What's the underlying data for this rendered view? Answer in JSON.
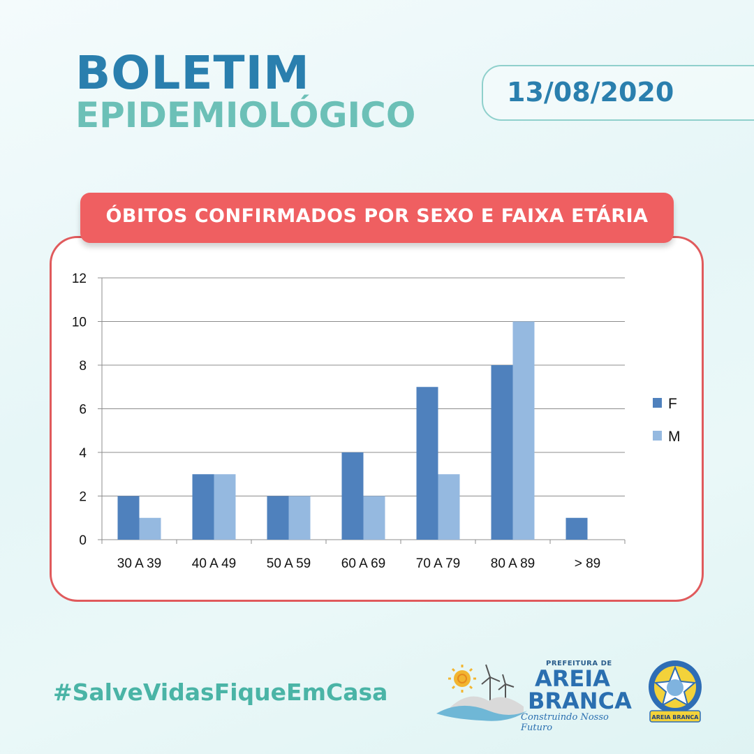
{
  "header": {
    "title_line1": "BOLETIM",
    "title_line2": "EPIDEMIOLÓGICO",
    "date": "13/08/2020"
  },
  "banner": {
    "text": "ÓBITOS CONFIRMADOS POR SEXO E FAIXA ETÁRIA"
  },
  "chart_data": {
    "type": "bar",
    "title": "ÓBITOS CONFIRMADOS POR SEXO E FAIXA ETÁRIA",
    "categories": [
      "30 A 39",
      "40 A 49",
      "50 A 59",
      "60 A 69",
      "70 A 79",
      "80 A 89",
      "> 89"
    ],
    "series": [
      {
        "name": "F",
        "values": [
          2,
          3,
          2,
          4,
          7,
          8,
          1
        ],
        "color": "#4f81bd"
      },
      {
        "name": "M",
        "values": [
          1,
          3,
          2,
          2,
          3,
          10,
          0
        ],
        "color": "#95b9e0"
      }
    ],
    "xlabel": "",
    "ylabel": "",
    "ylim": [
      0,
      12
    ],
    "yticks": [
      0,
      2,
      4,
      6,
      8,
      10,
      12
    ],
    "grid": true,
    "legend": "right"
  },
  "footer": {
    "hashtag": "#SalveVidasFiqueEmCasa",
    "logo_prefix": "PREFEITURA DE",
    "logo_line1": "AREIA",
    "logo_line2": "BRANCA",
    "logo_slogan": "Construindo Nosso Futuro",
    "seal_text": "AREIA BRANCA"
  },
  "icons": [
    "sun-icon",
    "wind-turbine-icon",
    "wave-icon",
    "city-seal-icon"
  ]
}
